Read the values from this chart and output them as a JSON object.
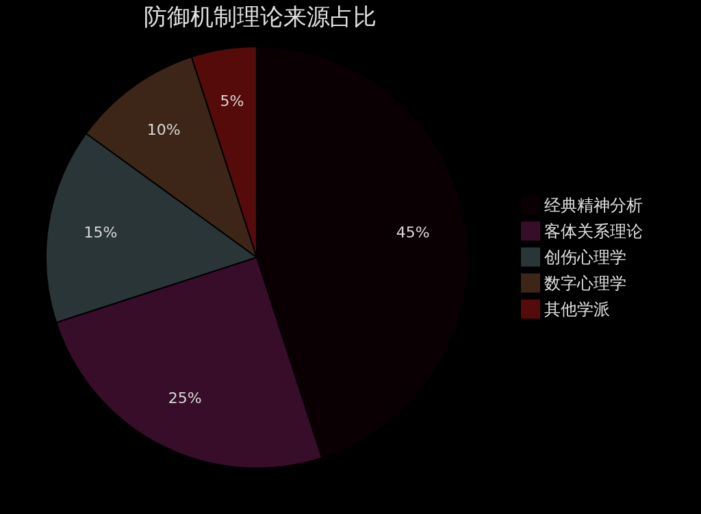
{
  "chart_data": {
    "type": "pie",
    "title": "防御机制理论来源占比",
    "categories": [
      "经典精神分析",
      "客体关系理论",
      "创伤心理学",
      "数字心理学",
      "其他学派"
    ],
    "values": [
      45,
      25,
      15,
      10,
      5
    ],
    "colors": [
      "#0a0003",
      "#380d2a",
      "#2a3538",
      "#3d2617",
      "#560b0b"
    ],
    "value_labels": [
      "45%",
      "25%",
      "15%",
      "10%",
      "5%"
    ],
    "legend": "right"
  }
}
